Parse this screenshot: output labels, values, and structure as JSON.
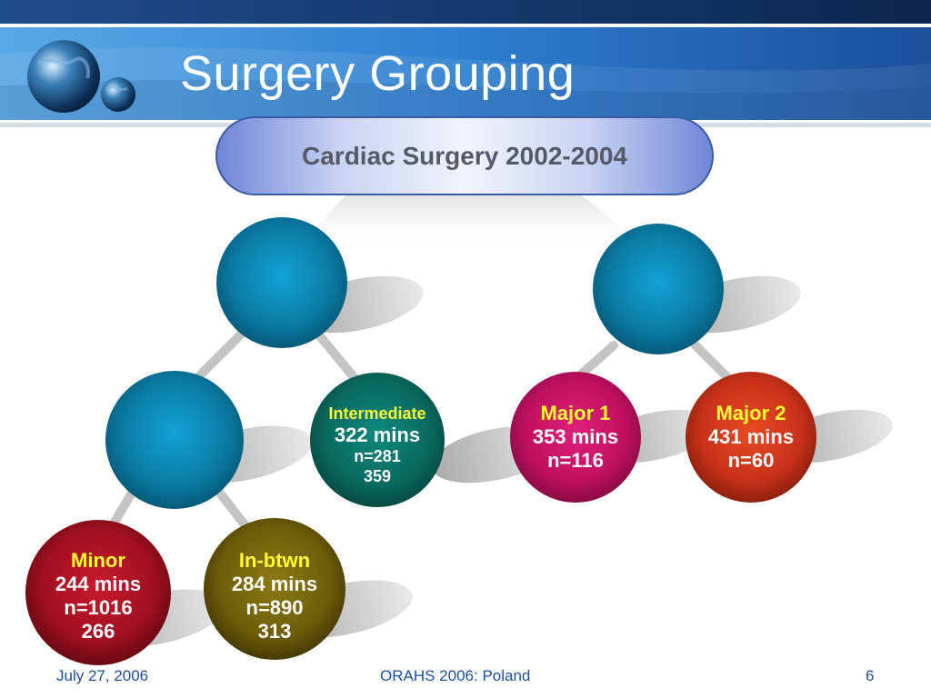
{
  "slide": {
    "title": "Surgery Grouping",
    "root_label": "Cardiac Surgery 2002-2004"
  },
  "nodes": {
    "intermediate": {
      "label": "Intermediate",
      "duration": "322 mins",
      "count": "n=281",
      "extra": "359",
      "color": "#0c5f57"
    },
    "major1": {
      "label": "Major 1",
      "duration": "353 mins",
      "count": "n=116",
      "color": "#c01060"
    },
    "major2": {
      "label": "Major 2",
      "duration": "431 mins",
      "count": "n=60",
      "color": "#c8321a"
    },
    "minor": {
      "label": "Minor",
      "duration": "244 mins",
      "count": "n=1016",
      "extra": "266",
      "color": "#a01020"
    },
    "inbetween": {
      "label": "In-btwn",
      "duration": "284 mins",
      "count": "n=890",
      "extra": "313",
      "color": "#6e5e0a"
    },
    "unlabeled_color": "#0a7fa6"
  },
  "footer": {
    "date": "July 27, 2006",
    "event": "ORAHS 2006: Poland",
    "page": "6"
  }
}
